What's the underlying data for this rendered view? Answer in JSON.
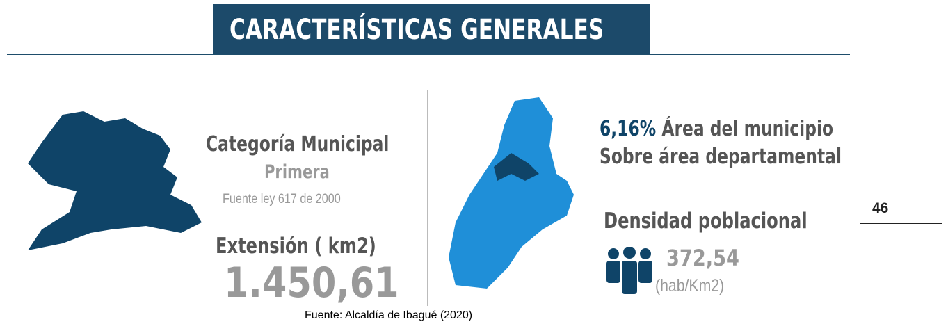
{
  "header": {
    "title": "CARACTERÍSTICAS GENERALES"
  },
  "left": {
    "category_label": "Categoría Municipal",
    "category_value": "Primera",
    "category_source": "Fuente ley 617 de 2000",
    "extension_label": "Extensión ( km2)",
    "extension_value": "1.450,61"
  },
  "right": {
    "area_percent": "6,16%",
    "area_text": "Área del municipio",
    "area_text2": "Sobre área departamental",
    "density_label": "Densidad poblacional",
    "density_value": "372,54",
    "density_unit": "(hab/Km2)"
  },
  "page_number": "46",
  "caption": "Fuente: Alcaldía de Ibagué (2020)"
}
